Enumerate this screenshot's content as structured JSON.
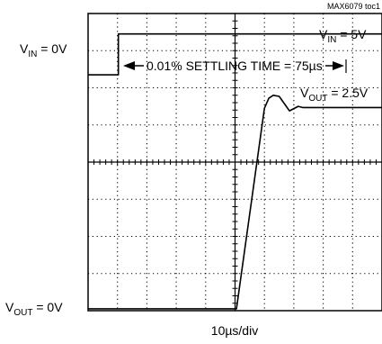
{
  "chart_data": {
    "type": "line",
    "figure_id": "MAX6079 toc1",
    "xlabel": "10µs/div",
    "annotation": "0.01% SETTLING TIME = 75µs",
    "labels": {
      "vin_low": {
        "sym": "V",
        "sub": "IN",
        "rest": " = 0V"
      },
      "vin_high": {
        "sym": "V",
        "sub": "IN",
        "rest": " = 5V"
      },
      "vout_high": {
        "sym": "V",
        "sub": "OUT",
        "rest": " = 2.5V"
      },
      "vout_low": {
        "sym": "V",
        "sub": "OUT",
        "rest": " = 0V"
      }
    },
    "grid": {
      "x_divisions": 10,
      "y_divisions": 8,
      "dotted": true
    },
    "series": [
      {
        "x": [
          0,
          1.03,
          1.03,
          10
        ],
        "y": [
          6.35,
          6.35,
          7.45,
          7.45
        ]
      },
      {
        "x": [
          0,
          5.05,
          6.0,
          6.15,
          6.3,
          6.5,
          6.7,
          6.85,
          7.0,
          7.15,
          7.3,
          10
        ],
        "y": [
          0.05,
          0.05,
          5.45,
          5.72,
          5.8,
          5.77,
          5.55,
          5.38,
          5.44,
          5.5,
          5.47,
          5.47
        ]
      }
    ]
  }
}
